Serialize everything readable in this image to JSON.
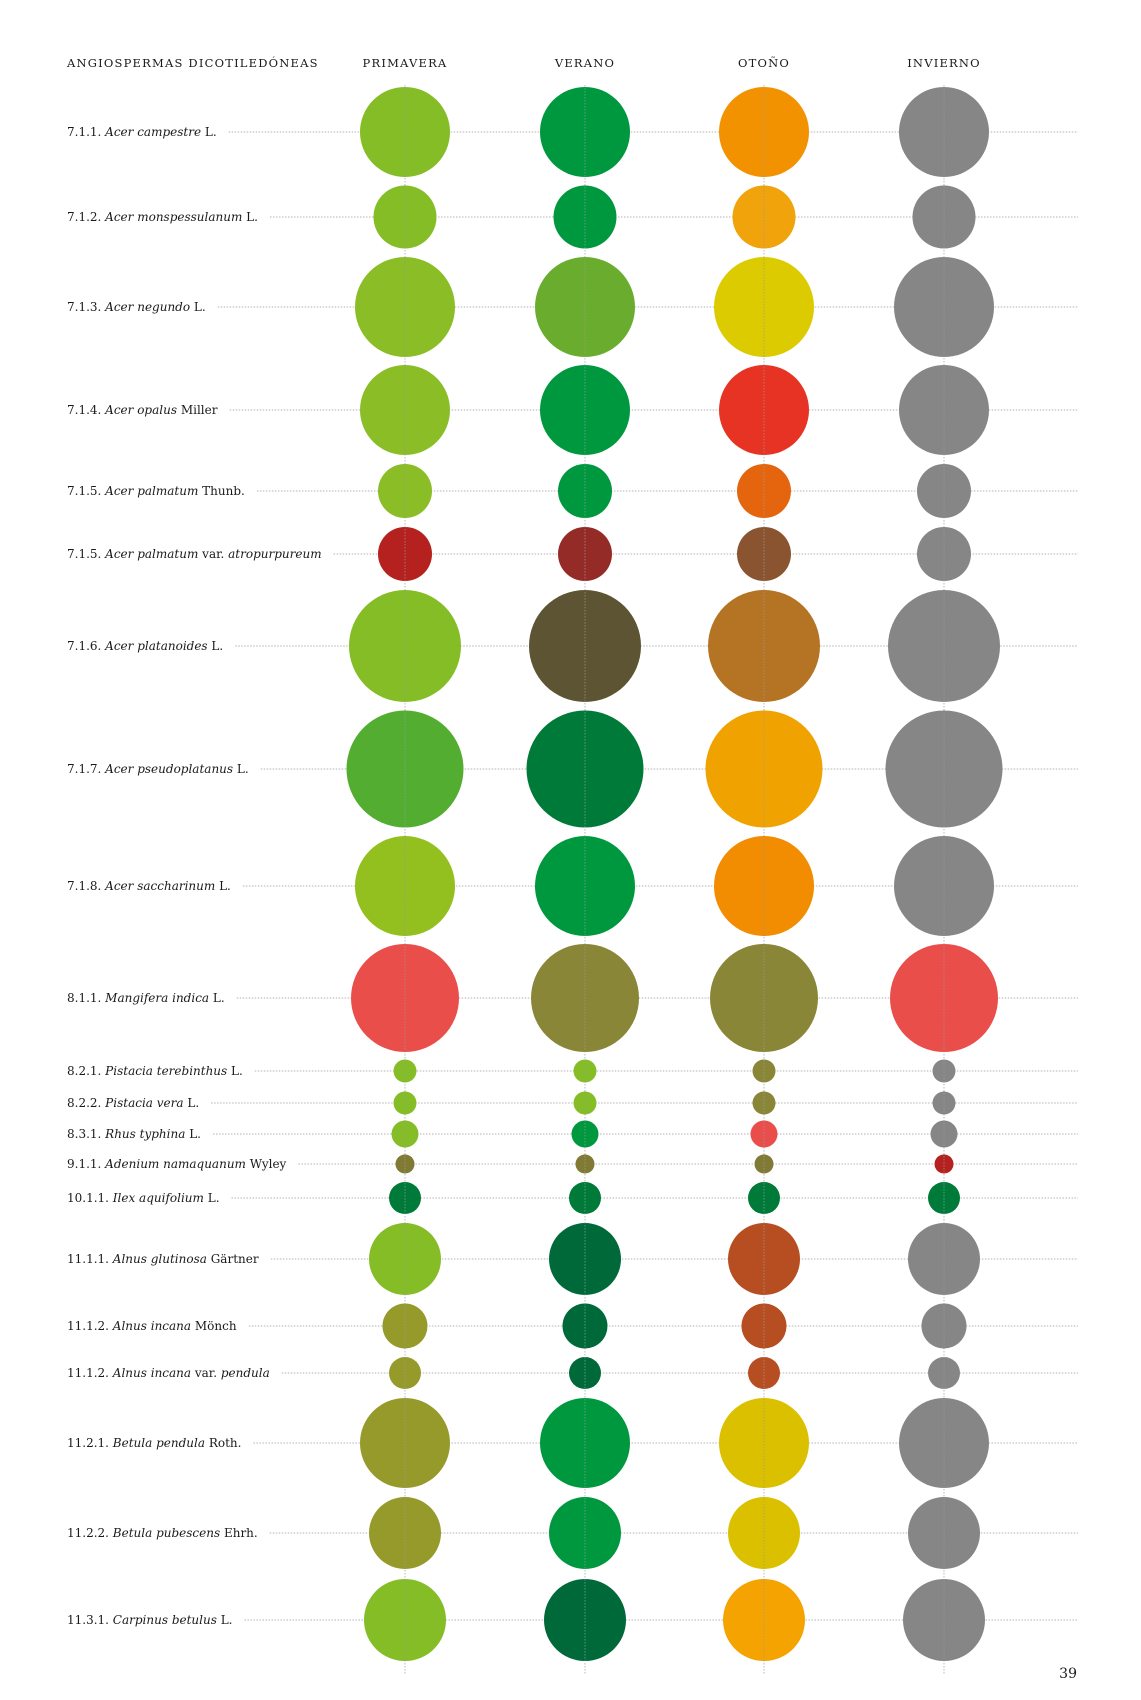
{
  "chart_data": {
    "type": "scatter",
    "header_label": "ANGIOSPERMAS DICOTILEDÓNEAS",
    "columns": [
      "PRIMAVERA",
      "VERANO",
      "OTOÑO",
      "INVIERNO"
    ],
    "page_number": "39",
    "rows": [
      {
        "code": "7.1.1.",
        "genus_species": "Acer campestre",
        "rest": " L.",
        "size": 90,
        "colors": [
          "#84bd26",
          "#00983f",
          "#f39200",
          "#868686"
        ]
      },
      {
        "code": "7.1.2.",
        "genus_species": "Acer monspessulanum",
        "rest": " L.",
        "size": 63,
        "colors": [
          "#84bd26",
          "#00983f",
          "#f0a30a",
          "#868686"
        ]
      },
      {
        "code": "7.1.3.",
        "genus_species": "Acer negundo",
        "rest": " L.",
        "size": 100,
        "colors": [
          "#8bbd26",
          "#6aad2e",
          "#dbcb00",
          "#868686"
        ]
      },
      {
        "code": "7.1.4.",
        "genus_species": "Acer opalus",
        "rest": " Miller",
        "size": 90,
        "colors": [
          "#8bbd26",
          "#00983f",
          "#e63323",
          "#868686"
        ]
      },
      {
        "code": "7.1.5.",
        "genus_species": "Acer palmatum",
        "rest": " Thunb.",
        "size": 54,
        "colors": [
          "#8bbd26",
          "#00983f",
          "#e5650f",
          "#868686"
        ]
      },
      {
        "code": "7.1.5.",
        "genus_species": "Acer palmatum",
        "rest": " var. ",
        "variety": "atropurpureum",
        "size": 54,
        "colors": [
          "#b5211e",
          "#952b27",
          "#8a5431",
          "#868686"
        ]
      },
      {
        "code": "7.1.6.",
        "genus_species": "Acer platanoides",
        "rest": " L.",
        "size": 112,
        "colors": [
          "#84bd26",
          "#5c5432",
          "#b57424",
          "#868686"
        ]
      },
      {
        "code": "7.1.7.",
        "genus_species": "Acer pseudoplatanus",
        "rest": " L.",
        "size": 117,
        "colors": [
          "#52ad31",
          "#007a38",
          "#f0a300",
          "#868686"
        ]
      },
      {
        "code": "7.1.8.",
        "genus_species": "Acer saccharinum",
        "rest": " L.",
        "size": 100,
        "colors": [
          "#93c01f",
          "#00983f",
          "#f28c00",
          "#868686"
        ]
      },
      {
        "code": "8.1.1.",
        "genus_species": "Mangifera indica",
        "rest": " L.",
        "size": 108,
        "colors": [
          "#e94e4a",
          "#8a8638",
          "#8a8638",
          "#e94e4a"
        ]
      },
      {
        "code": "8.2.1.",
        "genus_species": "Pistacia terebinthus",
        "rest": " L.",
        "size": 23,
        "colors": [
          "#84bd26",
          "#84bd26",
          "#8a8638",
          "#868686"
        ]
      },
      {
        "code": "8.2.2.",
        "genus_species": "Pistacia vera",
        "rest": " L.",
        "size": 23,
        "colors": [
          "#84bd26",
          "#84bd26",
          "#8a8638",
          "#868686"
        ]
      },
      {
        "code": "8.3.1.",
        "genus_species": "Rhus typhina",
        "rest": " L.",
        "size": 27,
        "colors": [
          "#84bd26",
          "#00983f",
          "#e94e4a",
          "#868686"
        ]
      },
      {
        "code": "9.1.1.",
        "genus_species": "Adenium namaquanum",
        "rest": " Wyley",
        "size": 19,
        "colors": [
          "#807a34",
          "#807a34",
          "#807a34",
          "#b5211e"
        ]
      },
      {
        "code": "10.1.1.",
        "genus_species": "Ilex aquifolium",
        "rest": " L.",
        "size": 32,
        "colors": [
          "#007a38",
          "#007a38",
          "#007a38",
          "#007a38"
        ]
      },
      {
        "code": "11.1.1.",
        "genus_species": "Alnus glutinosa",
        "rest": " Gärtner",
        "size": 72,
        "colors": [
          "#84bd26",
          "#00693a",
          "#b74e21",
          "#868686"
        ]
      },
      {
        "code": "11.1.2.",
        "genus_species": "Alnus incana",
        "rest": " Mönch",
        "size": 45,
        "colors": [
          "#969a2a",
          "#00693a",
          "#b74e21",
          "#868686"
        ]
      },
      {
        "code": "11.1.2.",
        "genus_species": "Alnus incana",
        "rest": " var. ",
        "variety": "pendula",
        "size": 32,
        "colors": [
          "#969a2a",
          "#00693a",
          "#b74e21",
          "#868686"
        ]
      },
      {
        "code": "11.2.1.",
        "genus_species": "Betula pendula",
        "rest": " Roth.",
        "size": 90,
        "colors": [
          "#969a2a",
          "#00983f",
          "#dbc000",
          "#868686"
        ]
      },
      {
        "code": "11.2.2.",
        "genus_species": "Betula pubescens",
        "rest": " Ehrh.",
        "size": 72,
        "colors": [
          "#969a2a",
          "#00983f",
          "#dbc000",
          "#868686"
        ]
      },
      {
        "code": "11.3.1.",
        "genus_species": "Carpinus betulus",
        "rest": " L.",
        "size": 82,
        "colors": [
          "#84bd26",
          "#00693a",
          "#f5a300",
          "#868686"
        ]
      }
    ]
  }
}
